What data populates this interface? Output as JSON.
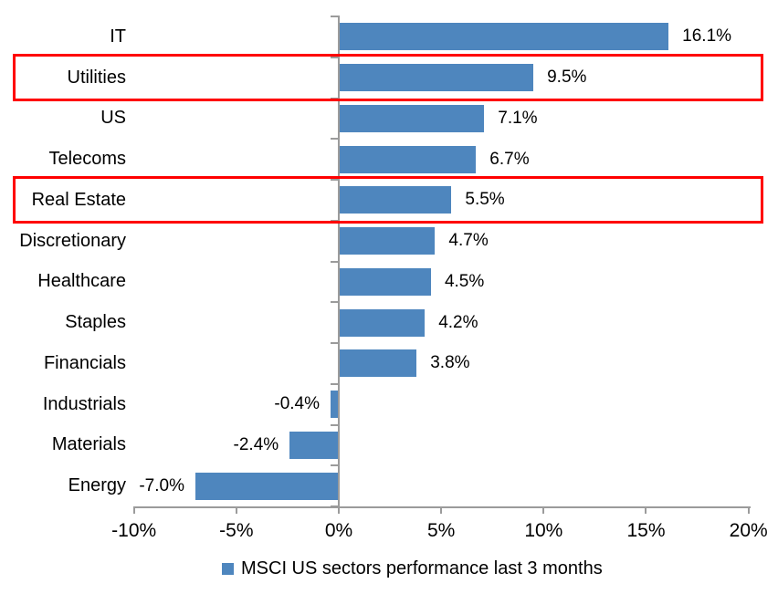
{
  "chart_data": {
    "type": "bar",
    "orientation": "horizontal",
    "title": "",
    "categories": [
      "IT",
      "Utilities",
      "US",
      "Telecoms",
      "Real Estate",
      "Discretionary",
      "Healthcare",
      "Staples",
      "Financials",
      "Industrials",
      "Materials",
      "Energy"
    ],
    "values": [
      16.1,
      9.5,
      7.1,
      6.7,
      5.5,
      4.7,
      4.5,
      4.2,
      3.8,
      -0.4,
      -2.4,
      -7.0
    ],
    "value_labels": [
      "16.1%",
      "9.5%",
      "7.1%",
      "6.7%",
      "5.5%",
      "4.7%",
      "4.5%",
      "4.2%",
      "3.8%",
      "-0.4%",
      "-2.4%",
      "-7.0%"
    ],
    "x_axis": {
      "min": -10,
      "max": 20,
      "tick_values": [
        -10,
        -5,
        0,
        5,
        10,
        15,
        20
      ],
      "tick_labels": [
        "-10%",
        "-5%",
        "0%",
        "5%",
        "10%",
        "15%",
        "20%"
      ]
    },
    "grid": false,
    "legend": {
      "position": "bottom",
      "label": "MSCI US sectors performance last 3 months"
    },
    "highlighted_categories": [
      "Utilities",
      "Real Estate"
    ],
    "colors": {
      "bar": "#4E86BE",
      "highlight_box": "#FF0000",
      "axis": "#9B9B9B",
      "text": "#000000",
      "background": "#FFFFFF"
    }
  }
}
